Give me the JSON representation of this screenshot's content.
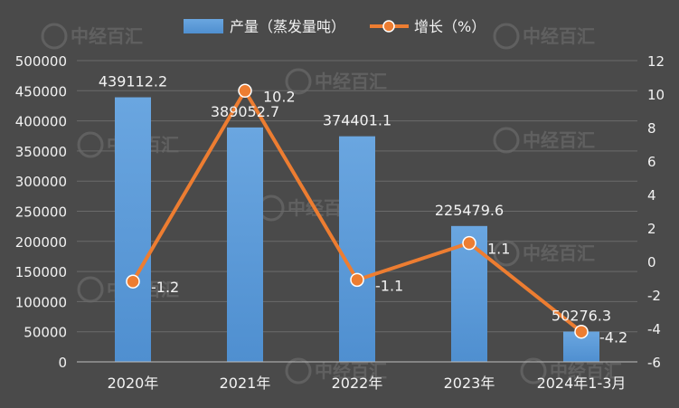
{
  "chart_data": {
    "type": "bar",
    "categories": [
      "2020年",
      "2021年",
      "2022年",
      "2023年",
      "2024年1-3月"
    ],
    "series": [
      {
        "name": "产量（蒸发量吨）",
        "type": "bar",
        "axis": "left",
        "values": [
          439112.2,
          389052.7,
          374401.1,
          225479.6,
          50276.3
        ],
        "labels": [
          "439112.2",
          "389052.7",
          "374401.1",
          "225479.6",
          "50276.3"
        ],
        "color": "#5b9bd5"
      },
      {
        "name": "增长（%）",
        "type": "line",
        "axis": "right",
        "values": [
          -1.2,
          10.2,
          -1.1,
          1.1,
          -4.2
        ],
        "labels": [
          "-1.2",
          "10.2",
          "-1.1",
          "1.1",
          "-4.2"
        ],
        "color": "#ed7d31"
      }
    ],
    "y_left": {
      "lim": [
        0,
        500000
      ],
      "ticks": [
        0,
        50000,
        100000,
        150000,
        200000,
        250000,
        300000,
        350000,
        400000,
        450000,
        500000
      ],
      "tick_labels": [
        "0",
        "50000",
        "100000",
        "150000",
        "200000",
        "250000",
        "300000",
        "350000",
        "400000",
        "450000",
        "500000"
      ]
    },
    "y_right": {
      "lim": [
        -6,
        12
      ],
      "ticks": [
        -6,
        -4,
        -2,
        0,
        2,
        4,
        6,
        8,
        10,
        12
      ],
      "tick_labels": [
        "-6",
        "-4",
        "-2",
        "0",
        "2",
        "4",
        "6",
        "8",
        "10",
        "12"
      ]
    },
    "grid": true,
    "legend": "top-center",
    "watermark": "中经百汇"
  }
}
